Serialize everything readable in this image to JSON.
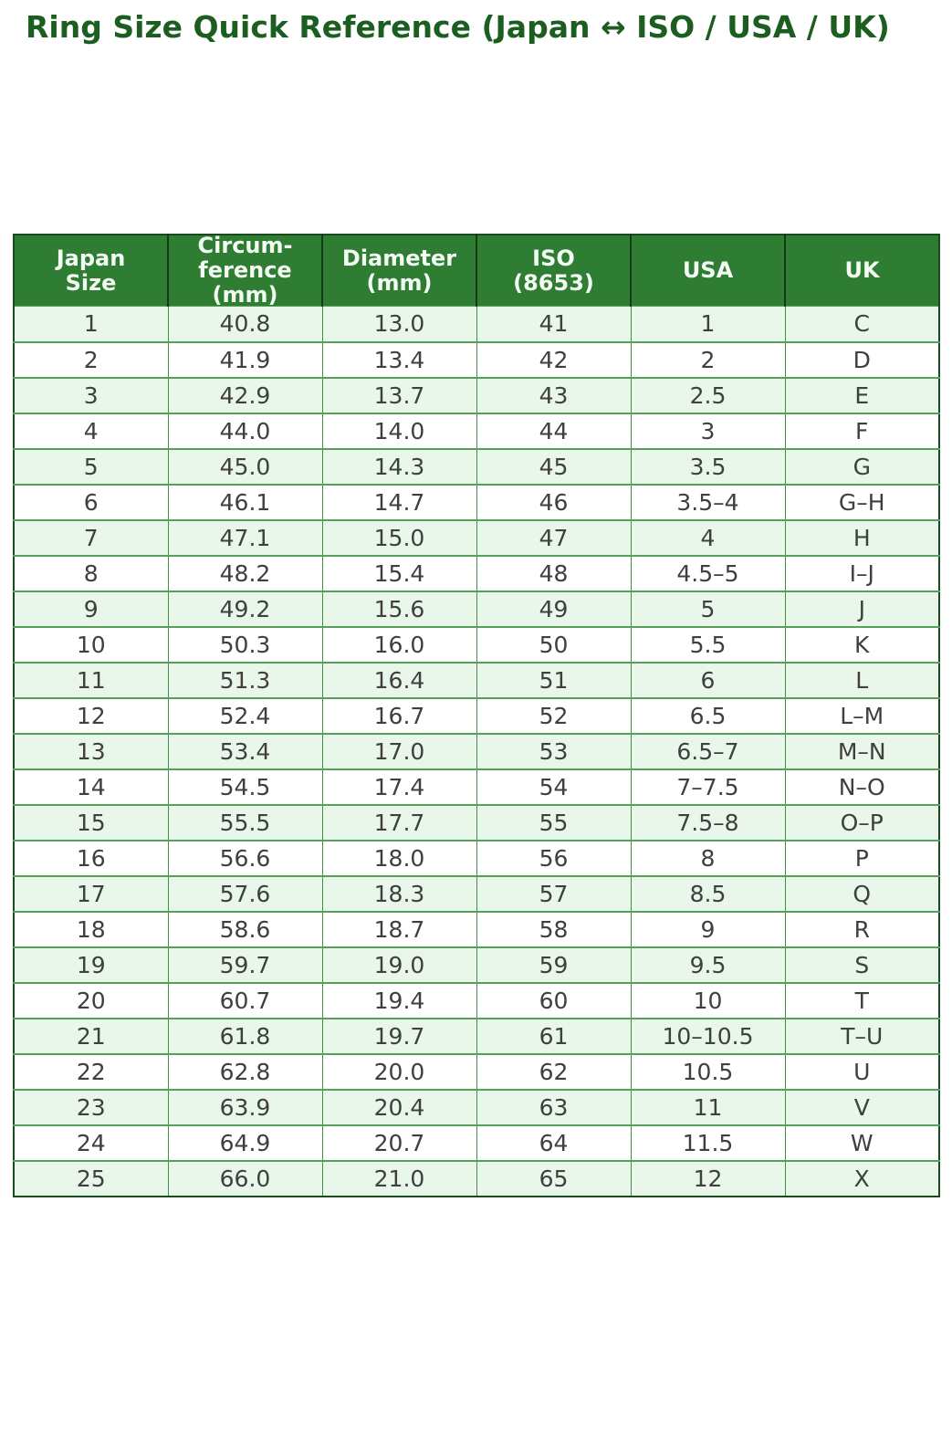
{
  "title": "Ring Size Quick Reference (Japan ↔ ISO / USA / UK)",
  "colors": {
    "title_green": "#1b5e20",
    "header_green": "#2e7d32",
    "row_alt_green": "#e9f6ea",
    "border_green": "#55a159",
    "cell_text_gray": "#3f3f3f"
  },
  "table": {
    "headers": [
      "Japan\nSize",
      "Circum-\nference\n(mm)",
      "Diameter\n(mm)",
      "ISO\n(8653)",
      "USA",
      "UK"
    ],
    "rows": [
      [
        "1",
        "40.8",
        "13.0",
        "41",
        "1",
        "C"
      ],
      [
        "2",
        "41.9",
        "13.4",
        "42",
        "2",
        "D"
      ],
      [
        "3",
        "42.9",
        "13.7",
        "43",
        "2.5",
        "E"
      ],
      [
        "4",
        "44.0",
        "14.0",
        "44",
        "3",
        "F"
      ],
      [
        "5",
        "45.0",
        "14.3",
        "45",
        "3.5",
        "G"
      ],
      [
        "6",
        "46.1",
        "14.7",
        "46",
        "3.5–4",
        "G–H"
      ],
      [
        "7",
        "47.1",
        "15.0",
        "47",
        "4",
        "H"
      ],
      [
        "8",
        "48.2",
        "15.4",
        "48",
        "4.5–5",
        "I–J"
      ],
      [
        "9",
        "49.2",
        "15.6",
        "49",
        "5",
        "J"
      ],
      [
        "10",
        "50.3",
        "16.0",
        "50",
        "5.5",
        "K"
      ],
      [
        "11",
        "51.3",
        "16.4",
        "51",
        "6",
        "L"
      ],
      [
        "12",
        "52.4",
        "16.7",
        "52",
        "6.5",
        "L–M"
      ],
      [
        "13",
        "53.4",
        "17.0",
        "53",
        "6.5–7",
        "M–N"
      ],
      [
        "14",
        "54.5",
        "17.4",
        "54",
        "7–7.5",
        "N–O"
      ],
      [
        "15",
        "55.5",
        "17.7",
        "55",
        "7.5–8",
        "O–P"
      ],
      [
        "16",
        "56.6",
        "18.0",
        "56",
        "8",
        "P"
      ],
      [
        "17",
        "57.6",
        "18.3",
        "57",
        "8.5",
        "Q"
      ],
      [
        "18",
        "58.6",
        "18.7",
        "58",
        "9",
        "R"
      ],
      [
        "19",
        "59.7",
        "19.0",
        "59",
        "9.5",
        "S"
      ],
      [
        "20",
        "60.7",
        "19.4",
        "60",
        "10",
        "T"
      ],
      [
        "21",
        "61.8",
        "19.7",
        "61",
        "10–10.5",
        "T–U"
      ],
      [
        "22",
        "62.8",
        "20.0",
        "62",
        "10.5",
        "U"
      ],
      [
        "23",
        "63.9",
        "20.4",
        "63",
        "11",
        "V"
      ],
      [
        "24",
        "64.9",
        "20.7",
        "64",
        "11.5",
        "W"
      ],
      [
        "25",
        "66.0",
        "21.0",
        "65",
        "12",
        "X"
      ]
    ]
  }
}
